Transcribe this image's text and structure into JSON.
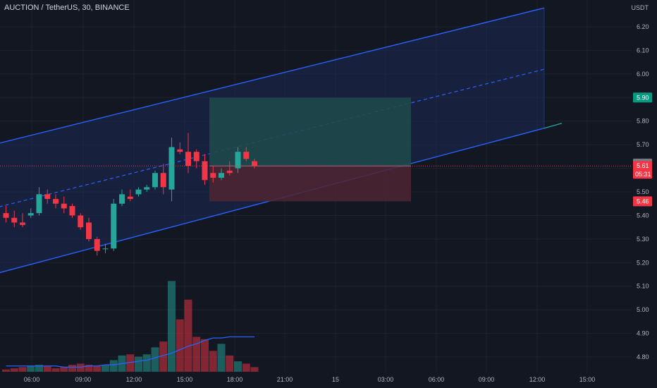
{
  "header": {
    "symbol_line": "AUCTION / TetherUS, 30, BINANCE"
  },
  "price_axis": {
    "currency": "USDT",
    "ticks": [
      "6.20",
      "6.10",
      "6.00",
      "5.90",
      "5.80",
      "5.70",
      "5.62",
      "5.61",
      "5.50",
      "5.46",
      "5.40",
      "5.30",
      "5.20",
      "5.10",
      "5.00",
      "4.90",
      "4.80"
    ]
  },
  "price_labels": {
    "target": "5.90",
    "last_close": "5.62",
    "current": "5.61",
    "countdown": "05:31",
    "stop": "5.46"
  },
  "time_axis": {
    "ticks": [
      "06:00",
      "09:00",
      "12:00",
      "15:00",
      "18:00",
      "21:00",
      "15",
      "03:00",
      "06:00",
      "09:00",
      "12:00",
      "15:00"
    ]
  },
  "colors": {
    "background": "#131722",
    "up": "#26a69a",
    "down": "#f23645",
    "channel_line": "#2962ff",
    "channel_fill": "#1b2a55",
    "target_zone": "#1e4a4b",
    "stop_zone": "#4f2433",
    "grid": "#1e222d",
    "text": "#b2b5be"
  },
  "chart_data": {
    "type": "candlestick",
    "symbol": "AUCTION / TetherUS",
    "interval": "30",
    "exchange": "BINANCE",
    "y_unit": "USDT",
    "ylim": [
      4.76,
      6.26
    ],
    "xlabels": [
      "06:00",
      "09:00",
      "12:00",
      "15:00",
      "18:00",
      "21:00",
      "15",
      "03:00",
      "06:00",
      "09:00",
      "12:00",
      "15:00"
    ],
    "candles": [
      {
        "o": 5.41,
        "h": 5.44,
        "l": 5.37,
        "c": 5.39
      },
      {
        "o": 5.39,
        "h": 5.42,
        "l": 5.35,
        "c": 5.37
      },
      {
        "o": 5.37,
        "h": 5.41,
        "l": 5.35,
        "c": 5.36
      },
      {
        "o": 5.4,
        "h": 5.43,
        "l": 5.39,
        "c": 5.41
      },
      {
        "o": 5.41,
        "h": 5.52,
        "l": 5.4,
        "c": 5.49
      },
      {
        "o": 5.49,
        "h": 5.51,
        "l": 5.45,
        "c": 5.47
      },
      {
        "o": 5.47,
        "h": 5.49,
        "l": 5.43,
        "c": 5.45
      },
      {
        "o": 5.45,
        "h": 5.48,
        "l": 5.41,
        "c": 5.43
      },
      {
        "o": 5.44,
        "h": 5.45,
        "l": 5.39,
        "c": 5.4
      },
      {
        "o": 5.4,
        "h": 5.41,
        "l": 5.34,
        "c": 5.35
      },
      {
        "o": 5.37,
        "h": 5.39,
        "l": 5.29,
        "c": 5.3
      },
      {
        "o": 5.3,
        "h": 5.31,
        "l": 5.23,
        "c": 5.25
      },
      {
        "o": 5.26,
        "h": 5.28,
        "l": 5.24,
        "c": 5.26
      },
      {
        "o": 5.26,
        "h": 5.47,
        "l": 5.25,
        "c": 5.45
      },
      {
        "o": 5.45,
        "h": 5.51,
        "l": 5.44,
        "c": 5.49
      },
      {
        "o": 5.48,
        "h": 5.51,
        "l": 5.46,
        "c": 5.47
      },
      {
        "o": 5.49,
        "h": 5.52,
        "l": 5.48,
        "c": 5.51
      },
      {
        "o": 5.51,
        "h": 5.53,
        "l": 5.5,
        "c": 5.52
      },
      {
        "o": 5.52,
        "h": 5.59,
        "l": 5.51,
        "c": 5.58
      },
      {
        "o": 5.58,
        "h": 5.62,
        "l": 5.49,
        "c": 5.52
      },
      {
        "o": 5.51,
        "h": 5.73,
        "l": 5.46,
        "c": 5.69
      },
      {
        "o": 5.68,
        "h": 5.71,
        "l": 5.66,
        "c": 5.67
      },
      {
        "o": 5.67,
        "h": 5.75,
        "l": 5.58,
        "c": 5.61
      },
      {
        "o": 5.67,
        "h": 5.68,
        "l": 5.6,
        "c": 5.63
      },
      {
        "o": 5.63,
        "h": 5.66,
        "l": 5.53,
        "c": 5.55
      },
      {
        "o": 5.58,
        "h": 5.61,
        "l": 5.54,
        "c": 5.56
      },
      {
        "o": 5.56,
        "h": 5.6,
        "l": 5.55,
        "c": 5.58
      },
      {
        "o": 5.59,
        "h": 5.63,
        "l": 5.57,
        "c": 5.58
      },
      {
        "o": 5.6,
        "h": 5.69,
        "l": 5.58,
        "c": 5.67
      },
      {
        "o": 5.67,
        "h": 5.69,
        "l": 5.63,
        "c": 5.64
      },
      {
        "o": 5.63,
        "h": 5.64,
        "l": 5.6,
        "c": 5.61
      }
    ],
    "volume": [
      2,
      3,
      4,
      5,
      6,
      5,
      3,
      4,
      6,
      7,
      6,
      5,
      6,
      10,
      14,
      15,
      13,
      15,
      21,
      26,
      78,
      45,
      62,
      30,
      28,
      18,
      24,
      14,
      9,
      7,
      4
    ],
    "volume_ma": [
      5,
      5,
      5,
      5,
      5,
      5,
      5,
      4,
      4,
      4,
      5,
      5,
      6,
      6,
      7,
      8,
      9,
      10,
      12,
      14,
      16,
      19,
      22,
      24,
      27,
      29,
      29,
      30,
      30,
      30,
      30
    ],
    "trade_setup": {
      "entry": 5.61,
      "target": 5.9,
      "stop": 5.46
    },
    "channel": {
      "upper_start": 5.7,
      "upper_end": 6.28,
      "mid_start": 5.43,
      "mid_end": 6.02,
      "lower_start": 5.15,
      "lower_end": 5.77
    },
    "grid": true
  }
}
